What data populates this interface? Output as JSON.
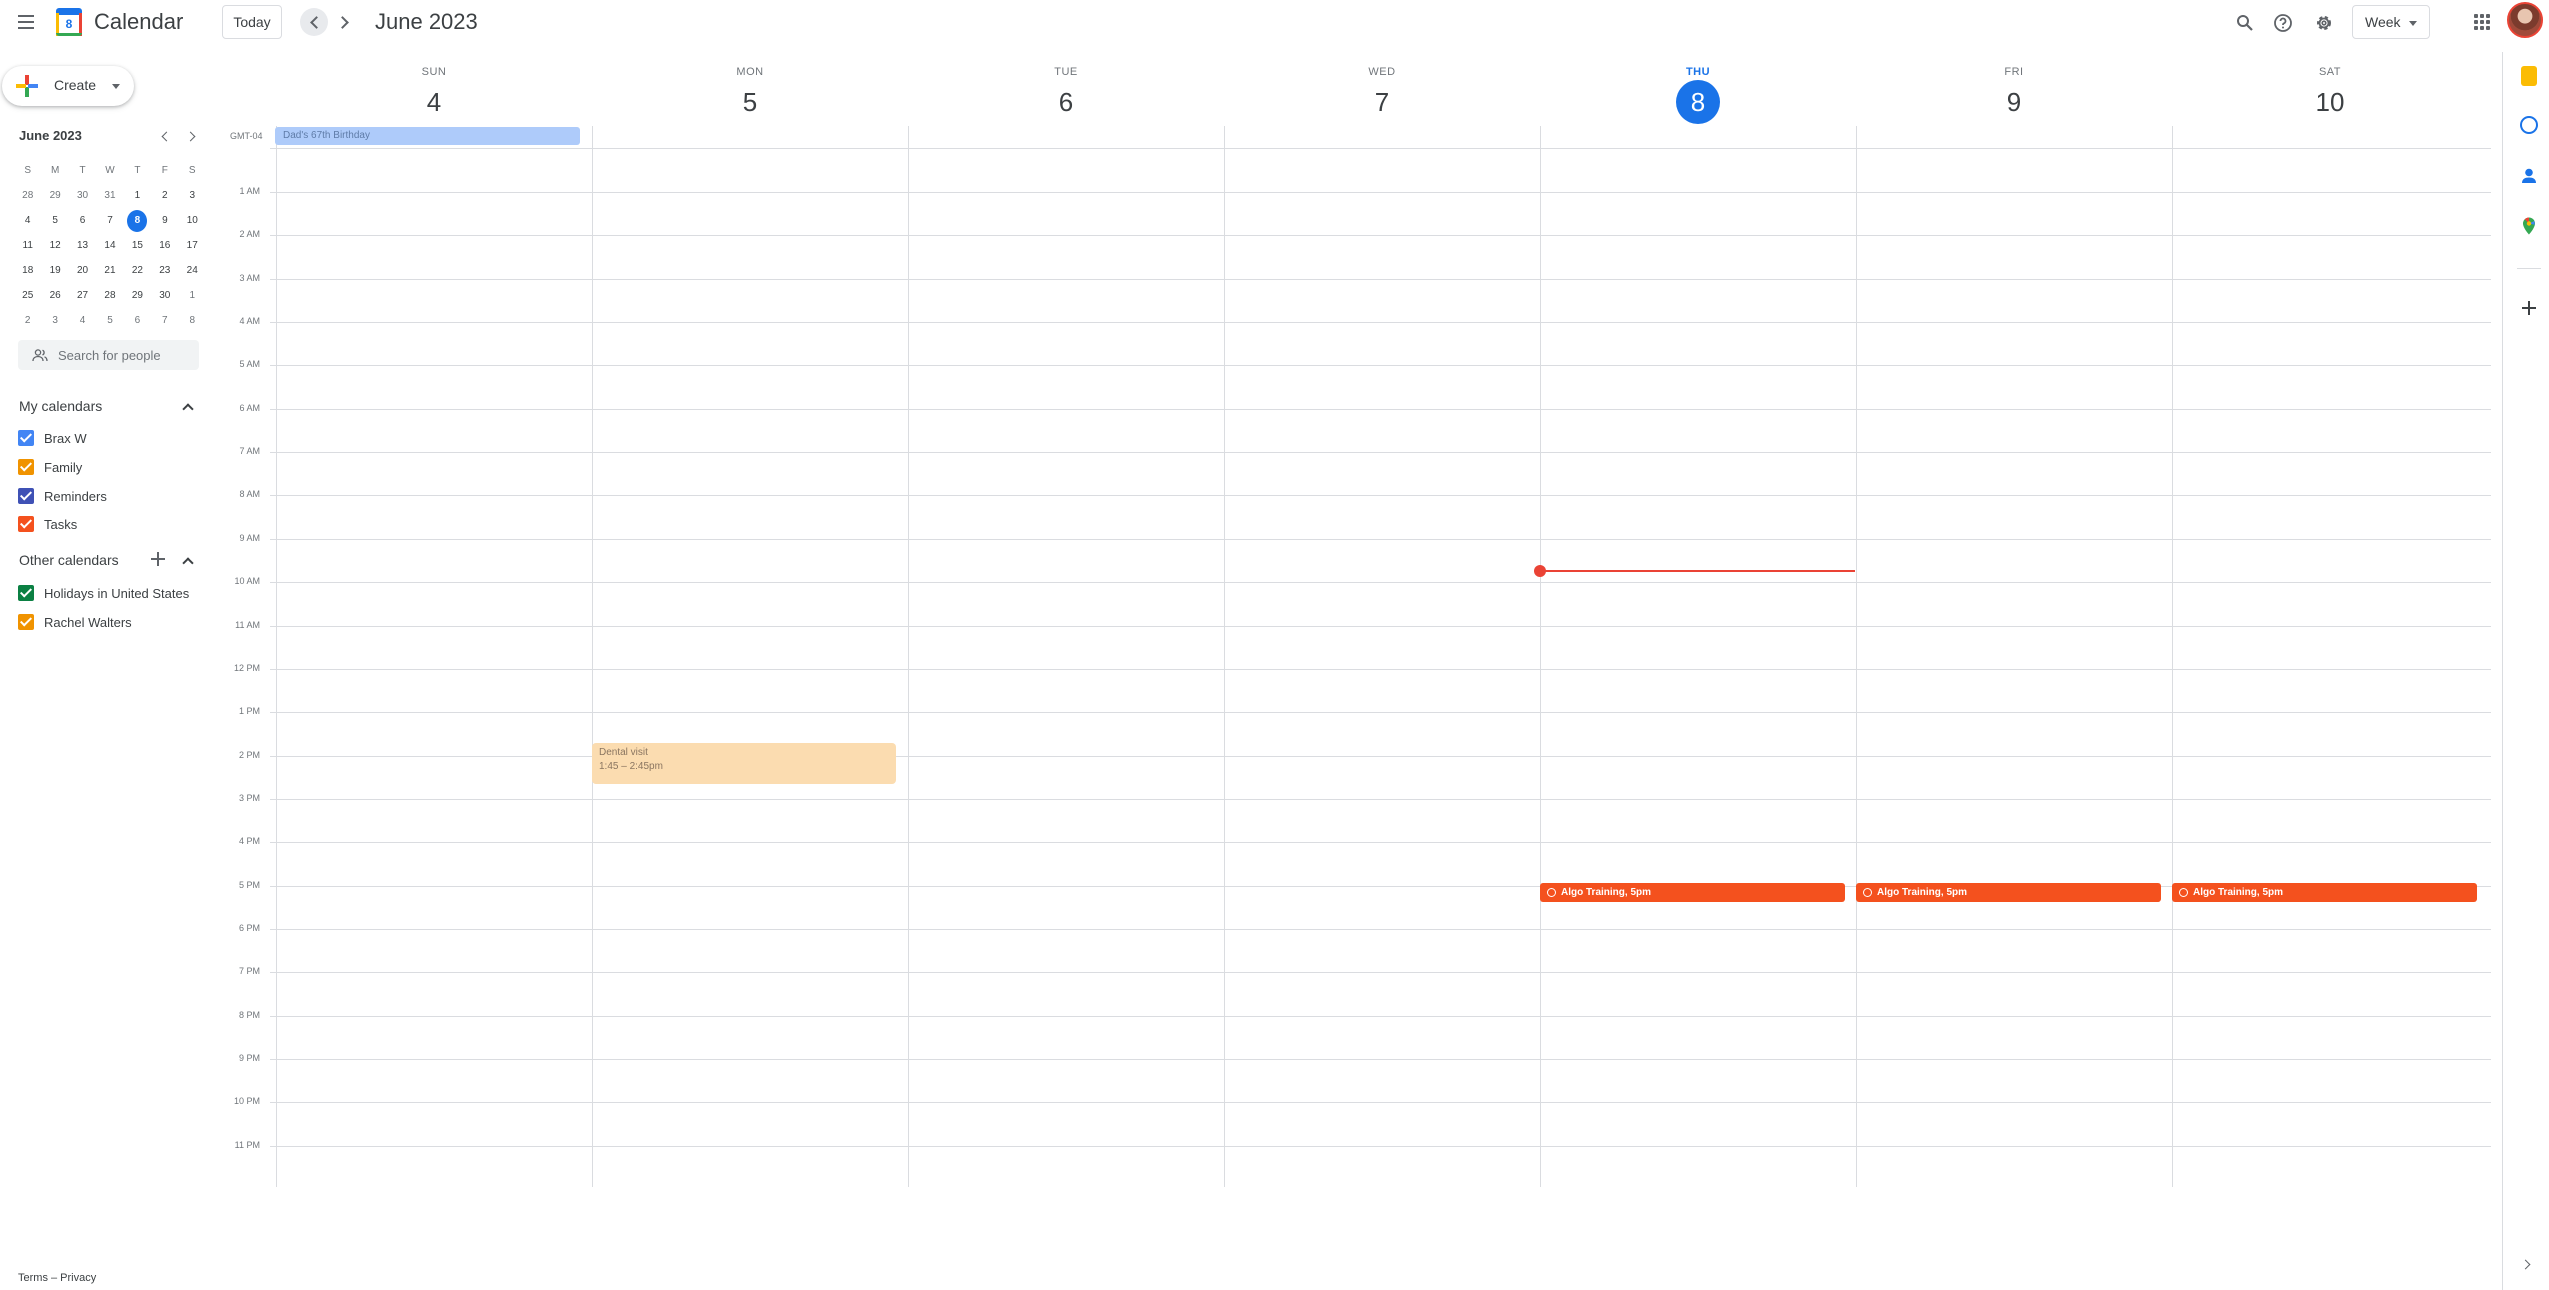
{
  "header": {
    "app_title": "Calendar",
    "logo_day": "8",
    "today_label": "Today",
    "period": "June 2023",
    "view": "Week"
  },
  "sidebar": {
    "create_label": "Create",
    "mini": {
      "title": "June 2023",
      "dow": [
        "S",
        "M",
        "T",
        "W",
        "T",
        "F",
        "S"
      ],
      "weeks": [
        [
          "28",
          "29",
          "30",
          "31",
          "1",
          "2",
          "3"
        ],
        [
          "4",
          "5",
          "6",
          "7",
          "8",
          "9",
          "10"
        ],
        [
          "11",
          "12",
          "13",
          "14",
          "15",
          "16",
          "17"
        ],
        [
          "18",
          "19",
          "20",
          "21",
          "22",
          "23",
          "24"
        ],
        [
          "25",
          "26",
          "27",
          "28",
          "29",
          "30",
          "1"
        ],
        [
          "2",
          "3",
          "4",
          "5",
          "6",
          "7",
          "8"
        ]
      ]
    },
    "search_people_placeholder": "Search for people",
    "my_calendars_title": "My calendars",
    "my_calendars": [
      {
        "label": "Brax W",
        "color": "#4285f4"
      },
      {
        "label": "Family",
        "color": "#f09300"
      },
      {
        "label": "Reminders",
        "color": "#3f51b5"
      },
      {
        "label": "Tasks",
        "color": "#f4511e"
      }
    ],
    "other_calendars_title": "Other calendars",
    "other_calendars": [
      {
        "label": "Holidays in United States",
        "color": "#0b8043"
      },
      {
        "label": "Rachel Walters",
        "color": "#f09300"
      }
    ],
    "footer": "Terms – Privacy"
  },
  "week": {
    "timezone": "GMT-04",
    "days": [
      {
        "dow": "SUN",
        "num": "4"
      },
      {
        "dow": "MON",
        "num": "5"
      },
      {
        "dow": "TUE",
        "num": "6"
      },
      {
        "dow": "WED",
        "num": "7"
      },
      {
        "dow": "THU",
        "num": "8",
        "today": true
      },
      {
        "dow": "FRI",
        "num": "9"
      },
      {
        "dow": "SAT",
        "num": "10"
      }
    ],
    "hours": [
      "1 AM",
      "2 AM",
      "3 AM",
      "4 AM",
      "5 AM",
      "6 AM",
      "7 AM",
      "8 AM",
      "9 AM",
      "10 AM",
      "11 AM",
      "12 PM",
      "1 PM",
      "2 PM",
      "3 PM",
      "4 PM",
      "5 PM",
      "6 PM",
      "7 PM",
      "8 PM",
      "9 PM",
      "10 PM",
      "11 PM"
    ],
    "all_day_event": "Dad's 67th Birthday",
    "dental": {
      "title": "Dental visit",
      "time": "1:45 – 2:45pm"
    },
    "algo_label": "Algo Training, 5pm"
  },
  "colors": {
    "accent": "#1a73e8",
    "now": "#ea4335",
    "task_event": "#f4511e",
    "dental_event": "#fbdcb0",
    "allday_event": "#aecbfa"
  }
}
